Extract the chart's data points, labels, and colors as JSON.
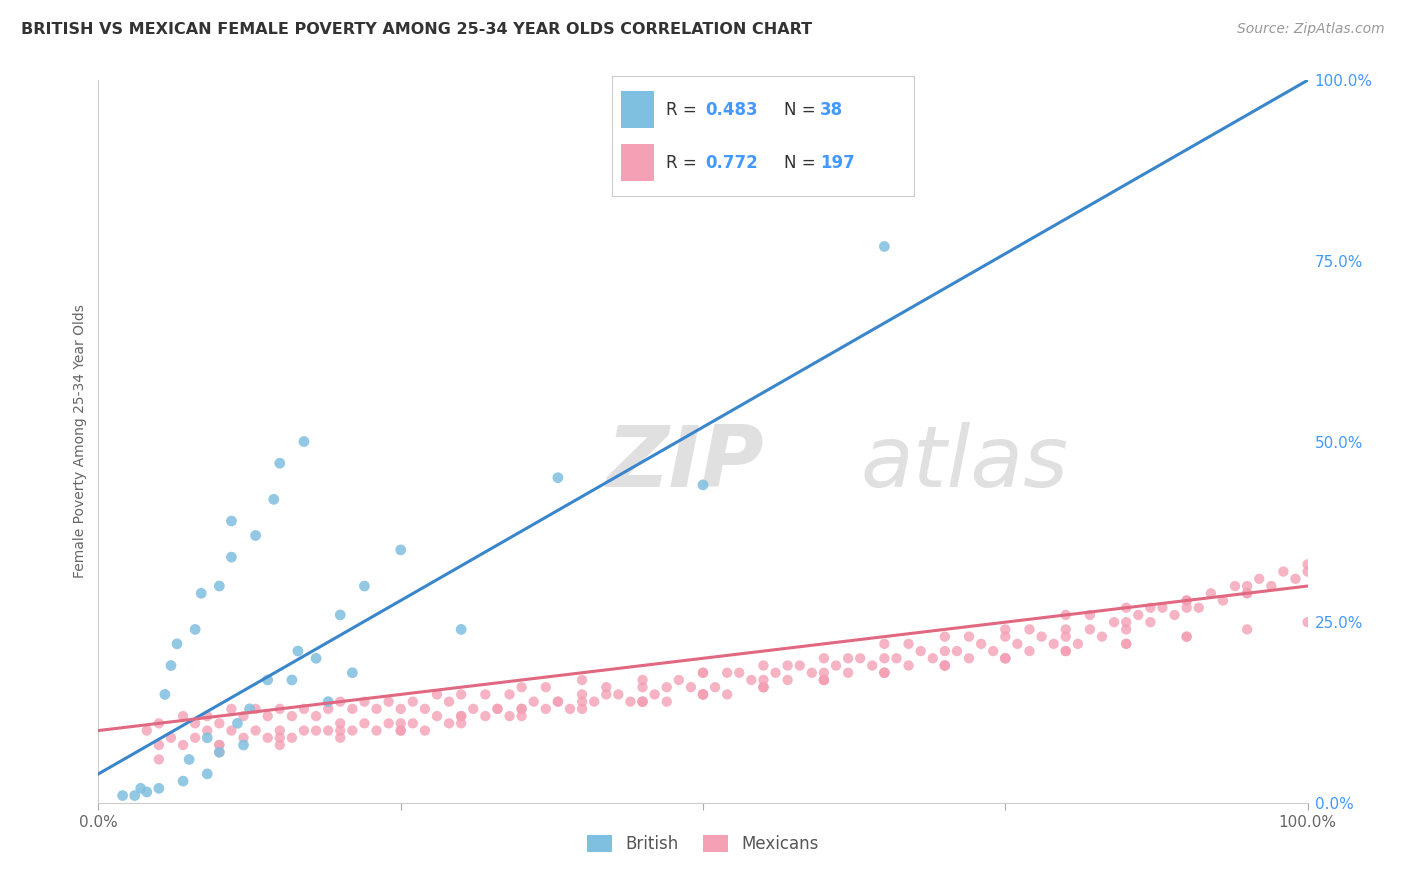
{
  "title": "BRITISH VS MEXICAN FEMALE POVERTY AMONG 25-34 YEAR OLDS CORRELATION CHART",
  "source": "Source: ZipAtlas.com",
  "ylabel": "Female Poverty Among 25-34 Year Olds",
  "xlim": [
    0.0,
    1.0
  ],
  "ylim": [
    0.0,
    1.0
  ],
  "british_R": 0.483,
  "british_N": 38,
  "mexican_R": 0.772,
  "mexican_N": 197,
  "british_color": "#7fbfdf",
  "mexican_color": "#f4a0b5",
  "british_line_color": "#3a86cc",
  "mexican_line_color": "#e06880",
  "british_line_x0": 0.0,
  "british_line_y0": 0.04,
  "british_line_x1": 1.0,
  "british_line_y1": 1.0,
  "mexican_line_x0": 0.0,
  "mexican_line_y0": 0.1,
  "mexican_line_x1": 1.0,
  "mexican_line_y1": 0.3,
  "watermark_color": "#e0e0e0",
  "background_color": "#ffffff",
  "grid_color": "#e8e8e8",
  "right_tick_color": "#4499ff",
  "british_x": [
    0.02,
    0.03,
    0.035,
    0.04,
    0.05,
    0.055,
    0.06,
    0.065,
    0.07,
    0.075,
    0.08,
    0.085,
    0.09,
    0.09,
    0.1,
    0.1,
    0.11,
    0.11,
    0.115,
    0.12,
    0.125,
    0.13,
    0.14,
    0.145,
    0.15,
    0.16,
    0.165,
    0.17,
    0.18,
    0.19,
    0.2,
    0.21,
    0.22,
    0.25,
    0.3,
    0.38,
    0.5,
    0.65
  ],
  "british_y": [
    0.01,
    0.01,
    0.02,
    0.015,
    0.02,
    0.15,
    0.19,
    0.22,
    0.03,
    0.06,
    0.24,
    0.29,
    0.04,
    0.09,
    0.07,
    0.3,
    0.34,
    0.39,
    0.11,
    0.08,
    0.13,
    0.37,
    0.17,
    0.42,
    0.47,
    0.17,
    0.21,
    0.5,
    0.2,
    0.14,
    0.26,
    0.18,
    0.3,
    0.35,
    0.24,
    0.45,
    0.44,
    0.77
  ],
  "mexican_x": [
    0.04,
    0.05,
    0.06,
    0.07,
    0.07,
    0.08,
    0.08,
    0.09,
    0.09,
    0.1,
    0.1,
    0.11,
    0.11,
    0.12,
    0.12,
    0.13,
    0.13,
    0.14,
    0.14,
    0.15,
    0.15,
    0.16,
    0.16,
    0.17,
    0.17,
    0.18,
    0.18,
    0.19,
    0.19,
    0.2,
    0.2,
    0.21,
    0.21,
    0.22,
    0.22,
    0.23,
    0.23,
    0.24,
    0.24,
    0.25,
    0.25,
    0.26,
    0.26,
    0.27,
    0.27,
    0.28,
    0.28,
    0.29,
    0.29,
    0.3,
    0.3,
    0.31,
    0.32,
    0.32,
    0.33,
    0.34,
    0.34,
    0.35,
    0.35,
    0.36,
    0.37,
    0.37,
    0.38,
    0.39,
    0.4,
    0.4,
    0.41,
    0.42,
    0.43,
    0.44,
    0.45,
    0.46,
    0.47,
    0.48,
    0.49,
    0.5,
    0.5,
    0.51,
    0.52,
    0.53,
    0.54,
    0.55,
    0.56,
    0.57,
    0.58,
    0.59,
    0.6,
    0.61,
    0.62,
    0.63,
    0.64,
    0.65,
    0.66,
    0.67,
    0.68,
    0.69,
    0.7,
    0.71,
    0.72,
    0.73,
    0.74,
    0.75,
    0.76,
    0.77,
    0.78,
    0.79,
    0.8,
    0.81,
    0.82,
    0.83,
    0.84,
    0.85,
    0.86,
    0.87,
    0.88,
    0.89,
    0.9,
    0.91,
    0.92,
    0.93,
    0.94,
    0.95,
    0.96,
    0.97,
    0.98,
    0.99,
    1.0,
    0.45,
    0.5,
    0.55,
    0.6,
    0.65,
    0.7,
    0.75,
    0.8,
    0.85,
    0.9,
    0.95,
    1.0,
    0.45,
    0.5,
    0.55,
    0.6,
    0.65,
    0.7,
    0.75,
    0.8,
    0.85,
    0.9,
    0.95,
    0.05,
    0.1,
    0.15,
    0.2,
    0.25,
    0.3,
    0.35,
    0.4,
    0.45,
    0.5,
    0.55,
    0.6,
    0.65,
    0.7,
    0.75,
    0.8,
    0.85,
    0.9,
    0.95,
    1.0,
    0.05,
    0.1,
    0.15,
    0.2,
    0.25,
    0.3,
    0.35,
    0.4,
    0.45,
    0.5,
    0.55,
    0.6,
    0.65,
    0.7,
    0.75,
    0.8,
    0.85,
    0.9,
    0.33,
    0.38,
    0.42,
    0.47,
    0.52,
    0.57,
    0.62,
    0.67,
    0.72,
    0.77,
    0.82,
    0.87
  ],
  "mexican_y": [
    0.1,
    0.11,
    0.09,
    0.08,
    0.12,
    0.09,
    0.11,
    0.12,
    0.1,
    0.08,
    0.11,
    0.1,
    0.13,
    0.09,
    0.12,
    0.1,
    0.13,
    0.09,
    0.12,
    0.1,
    0.13,
    0.09,
    0.12,
    0.1,
    0.13,
    0.1,
    0.12,
    0.1,
    0.13,
    0.11,
    0.14,
    0.1,
    0.13,
    0.11,
    0.14,
    0.1,
    0.13,
    0.11,
    0.14,
    0.1,
    0.13,
    0.11,
    0.14,
    0.1,
    0.13,
    0.12,
    0.15,
    0.11,
    0.14,
    0.12,
    0.15,
    0.13,
    0.12,
    0.15,
    0.13,
    0.12,
    0.15,
    0.13,
    0.16,
    0.14,
    0.13,
    0.16,
    0.14,
    0.13,
    0.15,
    0.17,
    0.14,
    0.16,
    0.15,
    0.14,
    0.16,
    0.15,
    0.14,
    0.17,
    0.16,
    0.15,
    0.18,
    0.16,
    0.15,
    0.18,
    0.17,
    0.16,
    0.18,
    0.17,
    0.19,
    0.18,
    0.17,
    0.19,
    0.18,
    0.2,
    0.19,
    0.18,
    0.2,
    0.19,
    0.21,
    0.2,
    0.19,
    0.21,
    0.2,
    0.22,
    0.21,
    0.2,
    0.22,
    0.21,
    0.23,
    0.22,
    0.23,
    0.22,
    0.24,
    0.23,
    0.25,
    0.24,
    0.26,
    0.25,
    0.27,
    0.26,
    0.28,
    0.27,
    0.29,
    0.28,
    0.3,
    0.29,
    0.31,
    0.3,
    0.32,
    0.31,
    0.33,
    0.17,
    0.18,
    0.19,
    0.2,
    0.22,
    0.23,
    0.24,
    0.26,
    0.27,
    0.28,
    0.3,
    0.32,
    0.14,
    0.15,
    0.17,
    0.18,
    0.2,
    0.21,
    0.23,
    0.24,
    0.25,
    0.27,
    0.29,
    0.08,
    0.08,
    0.09,
    0.1,
    0.11,
    0.12,
    0.13,
    0.14,
    0.14,
    0.15,
    0.16,
    0.17,
    0.18,
    0.19,
    0.2,
    0.21,
    0.22,
    0.23,
    0.24,
    0.25,
    0.06,
    0.07,
    0.08,
    0.09,
    0.1,
    0.11,
    0.12,
    0.13,
    0.14,
    0.15,
    0.16,
    0.17,
    0.18,
    0.19,
    0.2,
    0.21,
    0.22,
    0.23,
    0.13,
    0.14,
    0.15,
    0.16,
    0.18,
    0.19,
    0.2,
    0.22,
    0.23,
    0.24,
    0.26,
    0.27
  ]
}
